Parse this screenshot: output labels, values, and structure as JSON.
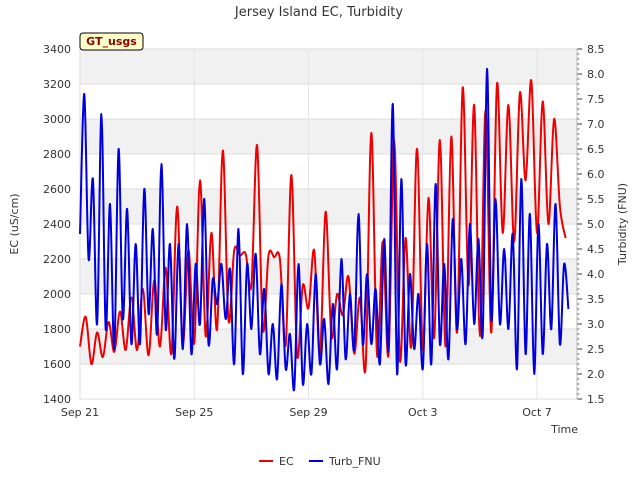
{
  "chart_data": {
    "type": "line",
    "title": "Jersey Island EC, Turbidity",
    "badge": "GT_usgs",
    "xlabel": "Time",
    "ylabel_left": "EC (uS/cm)",
    "ylabel_right": "Turbidity (FNU)",
    "x_ticks": [
      "Sep 21",
      "Sep 25",
      "Sep 29",
      "Oct 3",
      "Oct 7"
    ],
    "x_tick_days": [
      0,
      4,
      8,
      12,
      16
    ],
    "xlim_days": [
      0,
      17.4
    ],
    "ylim_left": [
      1400,
      3400
    ],
    "yticks_left": [
      1400,
      1600,
      1800,
      2000,
      2200,
      2400,
      2600,
      2800,
      3000,
      3200,
      3400
    ],
    "ylim_right": [
      1.5,
      8.5
    ],
    "yticks_right": [
      1.5,
      2.0,
      2.5,
      3.0,
      3.5,
      4.0,
      4.5,
      5.0,
      5.5,
      6.0,
      6.5,
      7.0,
      7.5,
      8.0,
      8.5
    ],
    "legend": [
      "EC",
      "Turb_FNU"
    ],
    "legend_position": "bottom-center",
    "grid": true,
    "colors": {
      "EC": "#ee0000",
      "Turb_FNU": "#0000dd"
    },
    "series": [
      {
        "name": "EC",
        "axis": "left",
        "x": [
          0.0,
          0.2,
          0.4,
          0.6,
          0.8,
          1.0,
          1.2,
          1.4,
          1.6,
          1.8,
          2.0,
          2.2,
          2.4,
          2.6,
          2.8,
          3.0,
          3.2,
          3.4,
          3.6,
          3.8,
          4.0,
          4.2,
          4.4,
          4.6,
          4.8,
          5.0,
          5.2,
          5.4,
          5.6,
          5.8,
          6.0,
          6.2,
          6.4,
          6.6,
          6.8,
          7.0,
          7.2,
          7.4,
          7.6,
          7.8,
          8.0,
          8.2,
          8.4,
          8.6,
          8.8,
          9.0,
          9.2,
          9.4,
          9.6,
          9.8,
          10.0,
          10.2,
          10.4,
          10.6,
          10.8,
          11.0,
          11.2,
          11.4,
          11.6,
          11.8,
          12.0,
          12.2,
          12.4,
          12.6,
          12.8,
          13.0,
          13.2,
          13.4,
          13.6,
          13.8,
          14.0,
          14.2,
          14.4,
          14.6,
          14.8,
          15.0,
          15.2,
          15.4,
          15.6,
          15.8,
          16.0,
          16.2,
          16.4,
          16.6,
          16.8,
          17.0
        ],
        "values": [
          1700,
          1870,
          1600,
          1780,
          1640,
          1840,
          1670,
          1900,
          1680,
          1980,
          1680,
          2030,
          1650,
          2080,
          1700,
          2150,
          1660,
          2500,
          1720,
          2250,
          1720,
          2650,
          1760,
          2350,
          1800,
          2820,
          1850,
          2250,
          2220,
          2230,
          2050,
          2850,
          1800,
          2220,
          2210,
          2200,
          1710,
          2680,
          1650,
          2050,
          1920,
          2250,
          1650,
          2470,
          1760,
          2000,
          1880,
          2100,
          1660,
          1980,
          1580,
          2920,
          1650,
          2300,
          1650,
          2880,
          1620,
          2320,
          1700,
          2830,
          1680,
          2550,
          1750,
          2880,
          1700,
          2900,
          1780,
          3180,
          2050,
          3080,
          1760,
          3050,
          1780,
          3200,
          2350,
          3080,
          2300,
          3150,
          2650,
          3220,
          2350,
          3100,
          2400,
          3000,
          2500,
          2320
        ]
      },
      {
        "name": "Turb_FNU",
        "axis": "right",
        "x": [
          0.0,
          0.15,
          0.3,
          0.45,
          0.6,
          0.75,
          0.9,
          1.05,
          1.2,
          1.35,
          1.5,
          1.65,
          1.8,
          1.95,
          2.1,
          2.25,
          2.4,
          2.55,
          2.7,
          2.85,
          3.0,
          3.15,
          3.3,
          3.45,
          3.6,
          3.75,
          3.9,
          4.05,
          4.2,
          4.35,
          4.5,
          4.65,
          4.8,
          4.95,
          5.1,
          5.25,
          5.4,
          5.55,
          5.7,
          5.85,
          6.0,
          6.15,
          6.3,
          6.45,
          6.6,
          6.75,
          6.9,
          7.05,
          7.2,
          7.35,
          7.5,
          7.65,
          7.8,
          7.95,
          8.1,
          8.25,
          8.4,
          8.55,
          8.7,
          8.85,
          9.0,
          9.15,
          9.3,
          9.45,
          9.6,
          9.75,
          9.9,
          10.05,
          10.2,
          10.35,
          10.5,
          10.65,
          10.8,
          10.95,
          11.1,
          11.25,
          11.4,
          11.55,
          11.7,
          11.85,
          12.0,
          12.15,
          12.3,
          12.45,
          12.6,
          12.75,
          12.9,
          13.05,
          13.2,
          13.35,
          13.5,
          13.65,
          13.8,
          13.95,
          14.1,
          14.25,
          14.4,
          14.55,
          14.7,
          14.85,
          15.0,
          15.15,
          15.3,
          15.45,
          15.6,
          15.75,
          15.9,
          16.05,
          16.2,
          16.35,
          16.5,
          16.65,
          16.8,
          16.95,
          17.1
        ],
        "values": [
          4.8,
          7.6,
          4.3,
          5.9,
          3.0,
          7.2,
          2.9,
          5.4,
          2.5,
          6.5,
          3.1,
          5.3,
          2.6,
          4.6,
          2.6,
          5.7,
          3.2,
          4.9,
          2.8,
          6.2,
          2.9,
          4.6,
          2.3,
          4.6,
          2.5,
          5.0,
          2.4,
          4.2,
          3.0,
          5.5,
          2.6,
          3.9,
          3.4,
          4.2,
          3.1,
          4.1,
          2.2,
          4.9,
          2.0,
          4.2,
          2.9,
          4.4,
          2.4,
          3.7,
          2.0,
          3.0,
          1.9,
          3.8,
          2.1,
          2.8,
          1.7,
          4.2,
          1.8,
          3.0,
          2.0,
          4.0,
          2.2,
          3.1,
          1.8,
          3.4,
          2.1,
          4.3,
          2.3,
          3.6,
          2.5,
          5.2,
          2.6,
          4.0,
          2.6,
          3.7,
          2.2,
          4.7,
          2.5,
          7.4,
          2.0,
          5.9,
          2.2,
          4.0,
          2.5,
          3.6,
          2.1,
          4.6,
          2.2,
          5.8,
          2.6,
          4.2,
          2.3,
          5.1,
          2.9,
          4.3,
          2.6,
          5.0,
          3.0,
          4.7,
          2.8,
          8.1,
          3.1,
          5.5,
          3.0,
          4.5,
          2.9,
          4.8,
          2.1,
          5.9,
          2.4,
          5.2,
          2.0,
          5.0,
          2.4,
          4.6,
          2.9,
          5.4,
          2.6,
          4.2,
          3.3
        ]
      }
    ]
  }
}
